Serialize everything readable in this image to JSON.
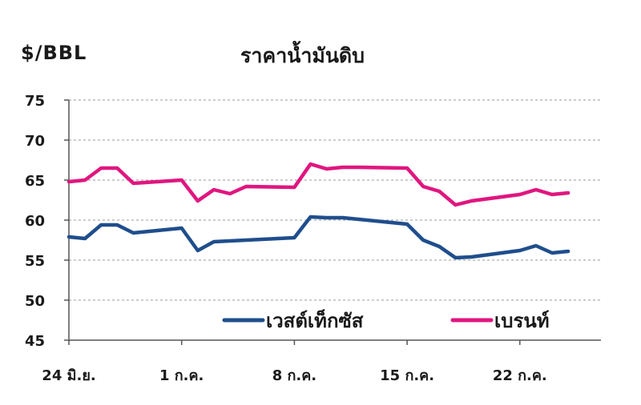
{
  "chart_data": {
    "type": "line",
    "title": "ราคาน้ำมันดิบ",
    "ylabel": "$/BBL",
    "xlabel": "",
    "ylim": [
      45,
      75
    ],
    "yticks": [
      75,
      70,
      65,
      60,
      55,
      50,
      45
    ],
    "xticks": [
      {
        "day": 0,
        "label": "24 มิ.ย."
      },
      {
        "day": 7,
        "label": "1 ก.ค."
      },
      {
        "day": 14,
        "label": "8 ก.ค."
      },
      {
        "day": 21,
        "label": "15 ก.ค."
      },
      {
        "day": 28,
        "label": "22 ก.ค."
      }
    ],
    "grid": true,
    "legend_position": "bottom",
    "series": [
      {
        "name": "เวสต์เท็กซัส",
        "color": "#1f4e8c",
        "x": [
          0,
          1,
          2,
          3,
          4,
          7,
          8,
          9,
          10,
          11,
          14,
          15,
          16,
          17,
          18,
          21,
          22,
          23,
          24,
          25,
          28,
          29,
          30,
          31
        ],
        "y": [
          57.9,
          57.7,
          59.4,
          59.4,
          58.4,
          59.0,
          56.2,
          57.3,
          57.4,
          57.5,
          57.8,
          60.4,
          60.3,
          60.3,
          60.1,
          59.5,
          57.5,
          56.7,
          55.3,
          55.4,
          56.2,
          56.8,
          55.9,
          56.1
        ]
      },
      {
        "name": "เบรนท์",
        "color": "#e0167f",
        "x": [
          0,
          1,
          2,
          3,
          4,
          7,
          8,
          9,
          10,
          11,
          14,
          15,
          16,
          17,
          18,
          21,
          22,
          23,
          24,
          25,
          28,
          29,
          30,
          31
        ],
        "y": [
          64.8,
          65.0,
          66.5,
          66.5,
          64.6,
          65.0,
          62.4,
          63.8,
          63.3,
          64.2,
          64.1,
          67.0,
          66.4,
          66.6,
          66.6,
          66.5,
          64.2,
          63.6,
          61.9,
          62.4,
          63.2,
          63.8,
          63.2,
          63.4
        ]
      }
    ]
  }
}
